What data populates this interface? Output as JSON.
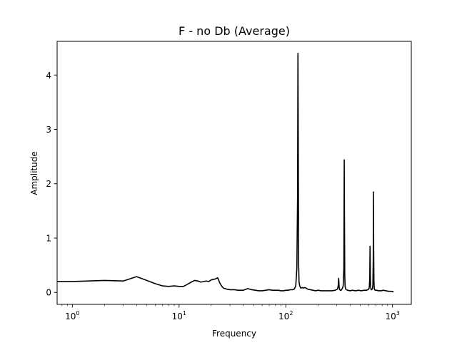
{
  "chart_data": {
    "type": "line",
    "title": "F - no Db  (Average)",
    "xlabel": "Frequency",
    "ylabel": "Amplitude",
    "xscale": "log",
    "xlim": [
      0.72,
      1500
    ],
    "ylim": [
      -0.22,
      4.62
    ],
    "grid": false,
    "legend": "none",
    "line_color": "#000000",
    "x_ticks": [
      {
        "value": 1,
        "base": "10",
        "exp": "0"
      },
      {
        "value": 10,
        "base": "10",
        "exp": "1"
      },
      {
        "value": 100,
        "base": "10",
        "exp": "2"
      },
      {
        "value": 1000,
        "base": "10",
        "exp": "3"
      }
    ],
    "y_ticks": [
      {
        "value": 0,
        "label": "0"
      },
      {
        "value": 1,
        "label": "1"
      },
      {
        "value": 2,
        "label": "2"
      },
      {
        "value": 3,
        "label": "3"
      },
      {
        "value": 4,
        "label": "4"
      }
    ],
    "series": [
      {
        "x": [
          0.72,
          1,
          2,
          3,
          4,
          5,
          6,
          7,
          8,
          9,
          10,
          11,
          12,
          13,
          14,
          15,
          16,
          17,
          18,
          19,
          20,
          21,
          22,
          23,
          24,
          25,
          26,
          28,
          30,
          33,
          36,
          40,
          44,
          48,
          52,
          56,
          60,
          65,
          70,
          75,
          80,
          85,
          90,
          95,
          100,
          105,
          110,
          115,
          120,
          124,
          127,
          129,
          130,
          131,
          132,
          133,
          135,
          138,
          142,
          146,
          150,
          155,
          160,
          170,
          180,
          190,
          200,
          215,
          230,
          250,
          270,
          290,
          305,
          310,
          313,
          316,
          320,
          325,
          330,
          335,
          340,
          345,
          350,
          353,
          355,
          357,
          360,
          365,
          370,
          380,
          400,
          420,
          450,
          480,
          510,
          540,
          570,
          590,
          605,
          612,
          616,
          620,
          624,
          630,
          640,
          650,
          655,
          660,
          663,
          666,
          670,
          675,
          680,
          690,
          710,
          740,
          780,
          820,
          870,
          920,
          970,
          1024
        ],
        "y": [
          0.2,
          0.2,
          0.22,
          0.21,
          0.29,
          0.22,
          0.16,
          0.12,
          0.11,
          0.12,
          0.11,
          0.11,
          0.15,
          0.19,
          0.22,
          0.21,
          0.19,
          0.2,
          0.21,
          0.2,
          0.23,
          0.24,
          0.25,
          0.27,
          0.18,
          0.12,
          0.08,
          0.06,
          0.05,
          0.05,
          0.04,
          0.04,
          0.07,
          0.05,
          0.04,
          0.03,
          0.03,
          0.04,
          0.05,
          0.04,
          0.04,
          0.04,
          0.03,
          0.03,
          0.04,
          0.04,
          0.05,
          0.05,
          0.06,
          0.12,
          0.45,
          1.8,
          4.4,
          2.5,
          0.5,
          0.2,
          0.12,
          0.08,
          0.09,
          0.08,
          0.09,
          0.08,
          0.06,
          0.05,
          0.04,
          0.03,
          0.04,
          0.03,
          0.03,
          0.03,
          0.03,
          0.04,
          0.06,
          0.12,
          0.26,
          0.1,
          0.05,
          0.04,
          0.04,
          0.06,
          0.08,
          0.12,
          0.45,
          2.44,
          1.2,
          0.3,
          0.1,
          0.06,
          0.05,
          0.04,
          0.03,
          0.04,
          0.03,
          0.04,
          0.03,
          0.04,
          0.04,
          0.05,
          0.08,
          0.25,
          0.85,
          0.3,
          0.1,
          0.05,
          0.05,
          0.08,
          0.15,
          0.6,
          1.85,
          0.8,
          0.2,
          0.08,
          0.05,
          0.04,
          0.04,
          0.03,
          0.03,
          0.04,
          0.03,
          0.02,
          0.02,
          0.01
        ]
      }
    ]
  }
}
